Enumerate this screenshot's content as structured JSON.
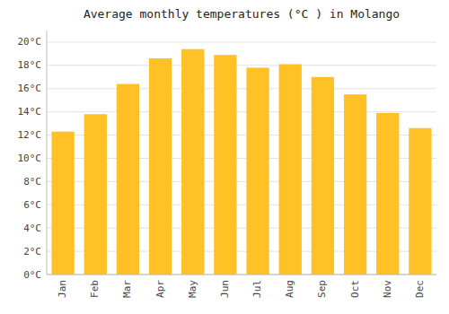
{
  "chart_data": {
    "type": "bar",
    "title": "Average monthly temperatures (°C ) in Molango",
    "categories": [
      "Jan",
      "Feb",
      "Mar",
      "Apr",
      "May",
      "Jun",
      "Jul",
      "Aug",
      "Sep",
      "Oct",
      "Nov",
      "Dec"
    ],
    "values": [
      12.3,
      13.8,
      16.4,
      18.6,
      19.4,
      18.9,
      17.8,
      18.1,
      17.0,
      15.5,
      13.9,
      12.6
    ],
    "color": "#FFC125",
    "ylim": [
      0,
      21
    ],
    "yticks": [
      {
        "value": 0,
        "label": "0°C"
      },
      {
        "value": 2,
        "label": "2°C"
      },
      {
        "value": 4,
        "label": "4°C"
      },
      {
        "value": 6,
        "label": "6°C"
      },
      {
        "value": 8,
        "label": "8°C"
      },
      {
        "value": 10,
        "label": "10°C"
      },
      {
        "value": 12,
        "label": "12°C"
      },
      {
        "value": 14,
        "label": "14°C"
      },
      {
        "value": 16,
        "label": "16°C"
      },
      {
        "value": 18,
        "label": "18°C"
      },
      {
        "value": 20,
        "label": "20°C"
      }
    ],
    "grid": true
  }
}
